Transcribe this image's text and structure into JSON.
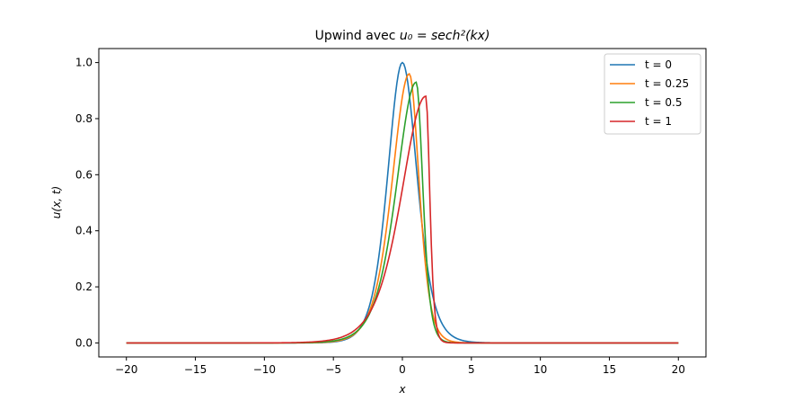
{
  "chart_data": {
    "type": "line",
    "title_prefix": "Upwind avec ",
    "title_math": "u₀ = sech²(kx)",
    "xlabel": "x",
    "ylabel": "u(x, t)",
    "xlim": [
      -22,
      22
    ],
    "ylim": [
      -0.05,
      1.05
    ],
    "xticks": [
      -20,
      -15,
      -10,
      -5,
      0,
      5,
      10,
      15,
      20
    ],
    "xtick_labels": [
      "−20",
      "−15",
      "−10",
      "−5",
      "0",
      "5",
      "10",
      "15",
      "20"
    ],
    "yticks": [
      0.0,
      0.2,
      0.4,
      0.6,
      0.8,
      1.0
    ],
    "ytick_labels": [
      "0.0",
      "0.2",
      "0.4",
      "0.6",
      "0.8",
      "1.0"
    ],
    "grid": false,
    "legend_position": "top-right",
    "series": [
      {
        "name": "t = 0",
        "color": "#1f77b4",
        "shift": 0.0,
        "peak": 1.0,
        "k_left": 0.7,
        "k_right": 0.7
      },
      {
        "name": "t = 0.25",
        "color": "#ff7f0e",
        "shift": 0.5,
        "peak": 0.96,
        "k_left": 0.6,
        "k_right": 1.05
      },
      {
        "name": "t = 0.5",
        "color": "#2ca02c",
        "shift": 1.0,
        "peak": 0.93,
        "k_left": 0.52,
        "k_right": 1.55
      },
      {
        "name": "t = 1",
        "color": "#d62728",
        "shift": 1.7,
        "peak": 0.88,
        "k_left": 0.42,
        "k_right": 2.6
      }
    ]
  }
}
